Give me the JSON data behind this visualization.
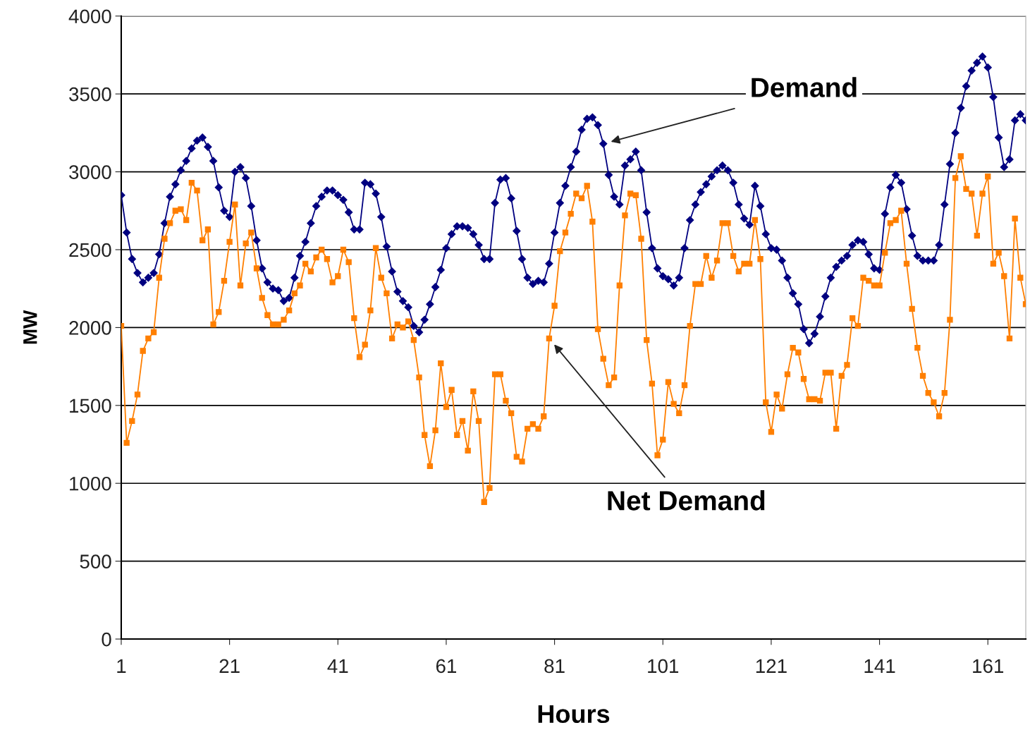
{
  "chart_data": {
    "type": "line",
    "xlabel": "Hours",
    "ylabel": "MW",
    "x": [
      1,
      2,
      3,
      4,
      5,
      6,
      7,
      8,
      9,
      10,
      11,
      12,
      13,
      14,
      15,
      16,
      17,
      18,
      19,
      20,
      21,
      22,
      23,
      24,
      25,
      26,
      27,
      28,
      29,
      30,
      31,
      32,
      33,
      34,
      35,
      36,
      37,
      38,
      39,
      40,
      41,
      42,
      43,
      44,
      45,
      46,
      47,
      48,
      49,
      50,
      51,
      52,
      53,
      54,
      55,
      56,
      57,
      58,
      59,
      60,
      61,
      62,
      63,
      64,
      65,
      66,
      67,
      68,
      69,
      70,
      71,
      72,
      73,
      74,
      75,
      76,
      77,
      78,
      79,
      80,
      81,
      82,
      83,
      84,
      85,
      86,
      87,
      88,
      89,
      90,
      91,
      92,
      93,
      94,
      95,
      96,
      97,
      98,
      99,
      100,
      101,
      102,
      103,
      104,
      105,
      106,
      107,
      108,
      109,
      110,
      111,
      112,
      113,
      114,
      115,
      116,
      117,
      118,
      119,
      120,
      121,
      122,
      123,
      124,
      125,
      126,
      127,
      128,
      129,
      130,
      131,
      132,
      133,
      134,
      135,
      136,
      137,
      138,
      139,
      140,
      141,
      142,
      143,
      144,
      145,
      146,
      147,
      148,
      149,
      150,
      151,
      152,
      153,
      154,
      155,
      156,
      157,
      158,
      159,
      160,
      161,
      162,
      163,
      164,
      165,
      166,
      167,
      168
    ],
    "series": [
      {
        "name": "Demand",
        "color": "#000080",
        "marker": "diamond",
        "values": [
          2850,
          2610,
          2440,
          2350,
          2290,
          2320,
          2350,
          2470,
          2670,
          2840,
          2920,
          3010,
          3070,
          3150,
          3200,
          3220,
          3160,
          3070,
          2900,
          2750,
          2710,
          3000,
          3030,
          2960,
          2780,
          2560,
          2380,
          2290,
          2250,
          2240,
          2170,
          2190,
          2320,
          2460,
          2550,
          2670,
          2780,
          2840,
          2880,
          2880,
          2850,
          2820,
          2740,
          2630,
          2630,
          2930,
          2920,
          2860,
          2710,
          2520,
          2360,
          2230,
          2170,
          2130,
          2010,
          1970,
          2050,
          2150,
          2260,
          2370,
          2510,
          2600,
          2650,
          2650,
          2640,
          2600,
          2530,
          2440,
          2440,
          2800,
          2950,
          2960,
          2830,
          2620,
          2440,
          2320,
          2280,
          2300,
          2290,
          2410,
          2610,
          2800,
          2910,
          3030,
          3130,
          3270,
          3340,
          3350,
          3300,
          3180,
          2980,
          2840,
          2790,
          3040,
          3080,
          3130,
          3010,
          2740,
          2510,
          2380,
          2330,
          2310,
          2270,
          2320,
          2510,
          2690,
          2790,
          2870,
          2920,
          2970,
          3010,
          3040,
          3010,
          2930,
          2790,
          2700,
          2660,
          2910,
          2780,
          2600,
          2510,
          2500,
          2430,
          2320,
          2220,
          2150,
          1990,
          1900,
          1960,
          2070,
          2200,
          2320,
          2390,
          2430,
          2460,
          2530,
          2560,
          2550,
          2470,
          2380,
          2370,
          2730,
          2900,
          2980,
          2930,
          2760,
          2590,
          2460,
          2430,
          2430,
          2430,
          2530,
          2790,
          3050,
          3250,
          3410,
          3550,
          3650,
          3700,
          3740,
          3670,
          3480,
          3220,
          3030,
          3080,
          3330,
          3370,
          3330
        ]
      },
      {
        "name": "Net Demand",
        "color": "#ff7f00",
        "marker": "square",
        "values": [
          2010,
          1260,
          1400,
          1570,
          1850,
          1930,
          1970,
          2320,
          2570,
          2670,
          2750,
          2760,
          2690,
          2930,
          2880,
          2560,
          2630,
          2020,
          2100,
          2300,
          2550,
          2790,
          2270,
          2540,
          2610,
          2380,
          2190,
          2080,
          2020,
          2020,
          2050,
          2110,
          2220,
          2270,
          2410,
          2360,
          2450,
          2500,
          2440,
          2290,
          2330,
          2500,
          2420,
          2060,
          1810,
          1890,
          2110,
          2510,
          2320,
          2220,
          1930,
          2020,
          2000,
          2040,
          1920,
          1680,
          1310,
          1110,
          1340,
          1770,
          1490,
          1600,
          1310,
          1400,
          1210,
          1590,
          1400,
          880,
          970,
          1700,
          1700,
          1530,
          1450,
          1170,
          1140,
          1350,
          1380,
          1350,
          1430,
          1930,
          2140,
          2490,
          2610,
          2730,
          2860,
          2830,
          2910,
          2680,
          1990,
          1800,
          1630,
          1680,
          2270,
          2720,
          2860,
          2850,
          2570,
          1920,
          1640,
          1180,
          1280,
          1650,
          1510,
          1450,
          1630,
          2010,
          2280,
          2280,
          2460,
          2320,
          2430,
          2670,
          2670,
          2460,
          2360,
          2410,
          2410,
          2690,
          2440,
          1520,
          1330,
          1570,
          1480,
          1700,
          1870,
          1840,
          1670,
          1540,
          1540,
          1530,
          1710,
          1710,
          1350,
          1690,
          1760,
          2060,
          2010,
          2320,
          2300,
          2270,
          2270,
          2480,
          2670,
          2690,
          2750,
          2410,
          2120,
          1870,
          1690,
          1580,
          1520,
          1430,
          1580,
          2050,
          2960,
          3100,
          2890,
          2860,
          2590,
          2860,
          2970,
          2410,
          2480,
          2330,
          1930,
          2700,
          2320,
          2150
        ]
      }
    ],
    "xlim": [
      1,
      168
    ],
    "xticks": [
      1,
      21,
      41,
      61,
      81,
      101,
      121,
      141,
      161
    ],
    "ylim": [
      0,
      4000
    ],
    "yticks": [
      0,
      500,
      1000,
      1500,
      2000,
      2500,
      3000,
      3500,
      4000
    ],
    "grid": "y",
    "legend": false,
    "line_style": "solid"
  }
}
